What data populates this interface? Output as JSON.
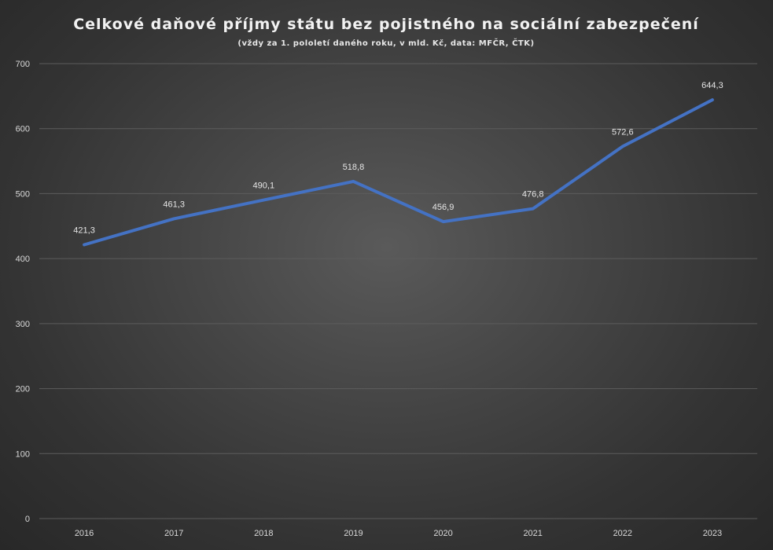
{
  "chart_data": {
    "type": "line",
    "title": "Celkové daňové příjmy státu bez pojistného na sociální zabezpečení",
    "subtitle": "(vždy za 1. pololetí daného roku, v mld. Kč, data: MFČR, ČTK)",
    "categories": [
      "2016",
      "2017",
      "2018",
      "2019",
      "2020",
      "2021",
      "2022",
      "2023"
    ],
    "values": [
      421.3,
      461.3,
      490.1,
      518.8,
      456.9,
      476.8,
      572.6,
      644.3
    ],
    "data_labels": [
      "421,3",
      "461,3",
      "490,1",
      "518,8",
      "456,9",
      "476,8",
      "572,6",
      "644,3"
    ],
    "ylim": [
      0,
      700
    ],
    "yticks": [
      "0",
      "100",
      "200",
      "300",
      "400",
      "500",
      "600",
      "700"
    ],
    "grid": true,
    "legend": "none",
    "colors": {
      "series": "#4472c4",
      "background": "#3a3a3a",
      "text": "#e6e6e6"
    }
  }
}
